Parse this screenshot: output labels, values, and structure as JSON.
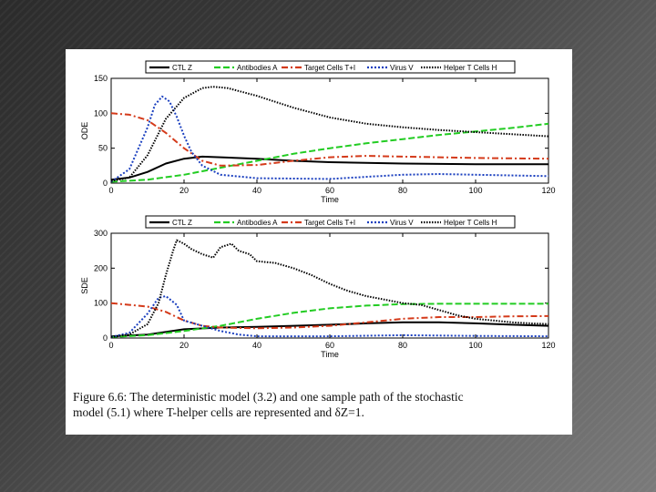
{
  "colors": {
    "ctl": "#000000",
    "antibodies": "#22cc22",
    "target": "#d43a1a",
    "virus": "#1a3fbf",
    "helper": "#000000"
  },
  "legend": [
    "CTL Z",
    "Antibodies A",
    "Target Cells T+I",
    "Virus V",
    "Helper T Cells H"
  ],
  "caption": {
    "line1": "Figure 6.6:  The deterministic model (3.2) and one sample path of the stochastic",
    "line2": "model (5.1) where T-helper cells are represented and δZ=1."
  },
  "chart_data": [
    {
      "type": "line",
      "ylabel": "ODE",
      "xlabel": "Time",
      "xlim": [
        0,
        120
      ],
      "ylim": [
        0,
        150
      ],
      "xticks": [
        0,
        20,
        40,
        60,
        80,
        100,
        120
      ],
      "yticks": [
        0,
        50,
        100,
        150
      ],
      "legend_position": "top",
      "series": [
        {
          "name": "CTL Z",
          "style": "solid",
          "x": [
            0,
            5,
            10,
            15,
            20,
            25,
            30,
            40,
            50,
            60,
            80,
            100,
            120
          ],
          "y": [
            5,
            8,
            16,
            28,
            35,
            38,
            37,
            35,
            32,
            30,
            28,
            27,
            27
          ]
        },
        {
          "name": "Antibodies A",
          "style": "dashed",
          "x": [
            0,
            10,
            20,
            30,
            40,
            50,
            60,
            70,
            80,
            90,
            100,
            110,
            120
          ],
          "y": [
            2,
            5,
            12,
            22,
            32,
            42,
            50,
            57,
            63,
            69,
            74,
            79,
            85
          ]
        },
        {
          "name": "Target Cells T+I",
          "style": "dashdot",
          "x": [
            0,
            5,
            10,
            15,
            20,
            25,
            30,
            40,
            50,
            60,
            70,
            80,
            90,
            100,
            120
          ],
          "y": [
            100,
            98,
            90,
            72,
            50,
            32,
            25,
            26,
            32,
            37,
            39,
            38,
            37,
            36,
            35
          ]
        },
        {
          "name": "Virus V",
          "style": "dotted",
          "x": [
            0,
            5,
            10,
            12,
            14,
            16,
            18,
            20,
            22,
            25,
            30,
            40,
            60,
            70,
            80,
            90,
            100,
            120
          ],
          "y": [
            2,
            20,
            80,
            112,
            124,
            117,
            95,
            68,
            45,
            25,
            12,
            7,
            6,
            9,
            12,
            13,
            12,
            10
          ]
        },
        {
          "name": "Helper T Cells H",
          "style": "dotted-dense",
          "x": [
            0,
            5,
            10,
            15,
            20,
            25,
            28,
            32,
            40,
            50,
            60,
            70,
            80,
            90,
            100,
            110,
            120
          ],
          "y": [
            3,
            8,
            40,
            92,
            122,
            136,
            138,
            136,
            125,
            108,
            94,
            85,
            80,
            76,
            73,
            70,
            67
          ]
        }
      ]
    },
    {
      "type": "line",
      "ylabel": "SDE",
      "xlabel": "Time",
      "xlim": [
        0,
        120
      ],
      "ylim": [
        0,
        300
      ],
      "xticks": [
        0,
        20,
        40,
        60,
        80,
        100,
        120
      ],
      "yticks": [
        0,
        100,
        200,
        300
      ],
      "legend_position": "top",
      "series": [
        {
          "name": "CTL Z",
          "style": "solid",
          "x": [
            0,
            10,
            20,
            30,
            40,
            50,
            60,
            70,
            80,
            90,
            100,
            110,
            120
          ],
          "y": [
            5,
            10,
            25,
            30,
            32,
            35,
            38,
            42,
            45,
            45,
            42,
            38,
            35
          ]
        },
        {
          "name": "Antibodies A",
          "style": "dashed",
          "x": [
            0,
            10,
            20,
            30,
            40,
            50,
            60,
            70,
            80,
            90,
            100,
            110,
            120
          ],
          "y": [
            3,
            8,
            20,
            35,
            55,
            72,
            85,
            93,
            97,
            98,
            98,
            98,
            98
          ]
        },
        {
          "name": "Target Cells T+I",
          "style": "dashdot",
          "x": [
            0,
            5,
            10,
            15,
            20,
            25,
            30,
            40,
            50,
            60,
            70,
            80,
            90,
            100,
            110,
            120
          ],
          "y": [
            100,
            95,
            90,
            75,
            50,
            35,
            30,
            28,
            30,
            35,
            45,
            55,
            60,
            60,
            62,
            63
          ]
        },
        {
          "name": "Virus V",
          "style": "dotted",
          "x": [
            0,
            5,
            10,
            13,
            15,
            18,
            20,
            25,
            30,
            35,
            40,
            60,
            80,
            100,
            120
          ],
          "y": [
            3,
            15,
            70,
            115,
            120,
            95,
            50,
            35,
            20,
            10,
            5,
            5,
            8,
            6,
            5
          ]
        },
        {
          "name": "Helper T Cells H",
          "style": "dotted-dense",
          "x": [
            0,
            5,
            10,
            13,
            15,
            17,
            18,
            20,
            22,
            25,
            28,
            30,
            33,
            35,
            38,
            40,
            45,
            50,
            55,
            60,
            65,
            70,
            75,
            80,
            85,
            90,
            95,
            100,
            105,
            110,
            115,
            120
          ],
          "y": [
            3,
            10,
            40,
            100,
            180,
            250,
            280,
            270,
            255,
            240,
            230,
            260,
            270,
            250,
            240,
            220,
            215,
            200,
            180,
            155,
            135,
            120,
            110,
            100,
            95,
            80,
            65,
            55,
            50,
            45,
            42,
            40
          ]
        }
      ]
    }
  ]
}
